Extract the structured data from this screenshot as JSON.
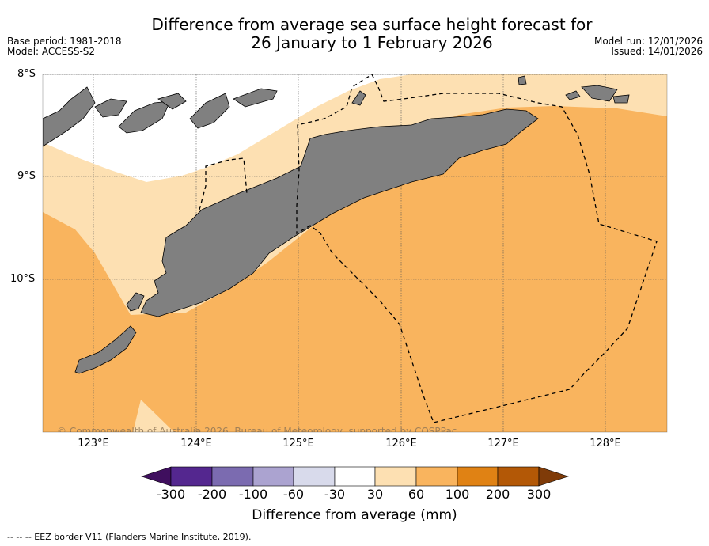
{
  "title": {
    "line1": "Difference from average sea surface height forecast for",
    "line2": "26 January to 1 February 2026"
  },
  "meta_left": {
    "base_period": "Base period: 1981-2018",
    "model": "Model: ACCESS-S2"
  },
  "meta_right": {
    "model_run": "Model run: 12/01/2026",
    "issued": "Issued: 14/01/2026"
  },
  "map": {
    "lat_labels": [
      "8°S",
      "9°S",
      "10°S"
    ],
    "lon_labels": [
      "123°E",
      "124°E",
      "125°E",
      "126°E",
      "127°E",
      "128°E"
    ],
    "copyright": "© Commonwealth of Australia 2026, Bureau of Meteorology, supported by COSPPac",
    "land_color": "#808080",
    "field_colors": {
      "30_to_60": "#fde0b2",
      "60_to_100": "#f9b45e",
      "-30_to_30": "#ffffff"
    }
  },
  "colorbar": {
    "tick_labels": [
      "-300",
      "-200",
      "-100",
      "-60",
      "-30",
      "30",
      "60",
      "100",
      "200",
      "300"
    ],
    "colors": [
      "#3f0f5e",
      "#54278f",
      "#7b6bb0",
      "#aba3d0",
      "#d8daeb",
      "#ffffff",
      "#fde0b2",
      "#f9b45e",
      "#e08214",
      "#b35806",
      "#7f3b08"
    ],
    "label": "Difference from average (mm)"
  },
  "legend_note": "--  --  -- EEZ border V11 (Flanders Marine Institute, 2019)."
}
